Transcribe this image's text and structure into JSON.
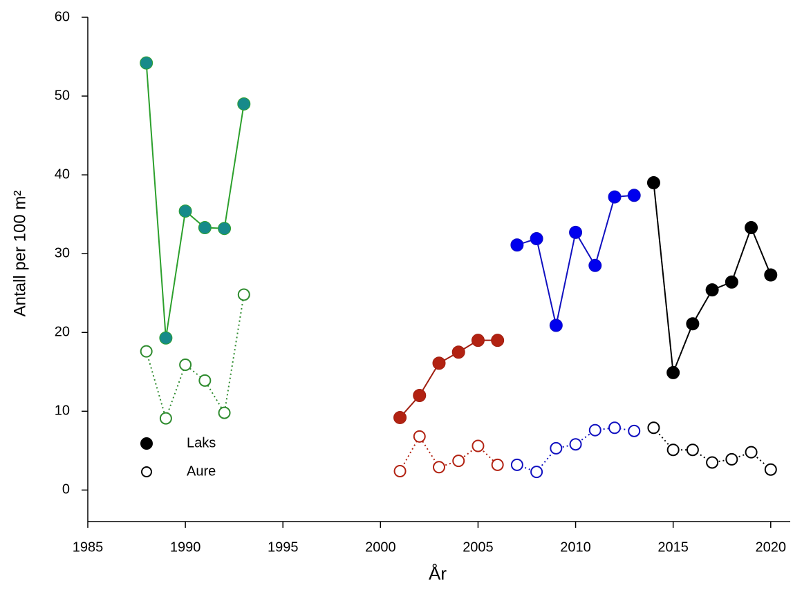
{
  "chart_data": {
    "type": "line",
    "x_label": "År",
    "y_label": "Antall per 100 m²",
    "xlim": [
      1985,
      2021
    ],
    "xticks": [
      1985,
      1990,
      1995,
      2000,
      2005,
      2010,
      2015,
      2020
    ],
    "ylim": [
      -4,
      60
    ],
    "yticks": [
      0,
      10,
      20,
      30,
      40,
      50,
      60
    ],
    "legend": [
      {
        "label": "Laks",
        "marker": "filled"
      },
      {
        "label": "Aure",
        "marker": "open"
      }
    ],
    "series": [
      {
        "marker": "filled",
        "line": "solid",
        "color": "#2ca02c",
        "marker_color": "#178a8a",
        "x": [
          1988,
          1989,
          1990,
          1991,
          1992,
          1993
        ],
        "values": [
          54.2,
          19.3,
          35.4,
          33.3,
          33.2,
          49.0
        ]
      },
      {
        "marker": "open",
        "line": "dotted",
        "color": "#2e8b2e",
        "marker_color": "#2e8b2e",
        "x": [
          1988,
          1989,
          1990,
          1991,
          1992,
          1993
        ],
        "values": [
          17.6,
          9.1,
          15.9,
          13.9,
          9.8,
          24.8
        ]
      },
      {
        "marker": "filled",
        "line": "solid",
        "color": "#a01e10",
        "marker_color": "#b22212",
        "x": [
          2001,
          2002,
          2003,
          2004,
          2005,
          2006
        ],
        "values": [
          9.2,
          12.0,
          16.1,
          17.5,
          19.0,
          19.0
        ]
      },
      {
        "marker": "open",
        "line": "dotted",
        "color": "#b22212",
        "marker_color": "#b22212",
        "x": [
          2001,
          2002,
          2003,
          2004,
          2005,
          2006
        ],
        "values": [
          2.4,
          6.8,
          2.9,
          3.7,
          5.6,
          3.2
        ]
      },
      {
        "marker": "filled",
        "line": "solid",
        "color": "#1010c0",
        "marker_color": "#0000ee",
        "x": [
          2007,
          2008,
          2009,
          2010,
          2011,
          2012,
          2013
        ],
        "values": [
          31.1,
          31.9,
          20.9,
          32.7,
          28.5,
          37.2,
          37.4
        ]
      },
      {
        "marker": "open",
        "line": "dotted",
        "color": "#1010c0",
        "marker_color": "#1010c0",
        "x": [
          2007,
          2008,
          2009,
          2010,
          2011,
          2012,
          2013
        ],
        "values": [
          3.2,
          2.3,
          5.3,
          5.8,
          7.6,
          7.9,
          7.5
        ]
      },
      {
        "marker": "filled",
        "line": "solid",
        "color": "#000000",
        "marker_color": "#000000",
        "x": [
          2014,
          2015,
          2016,
          2017,
          2018,
          2019,
          2020
        ],
        "values": [
          39.0,
          14.9,
          21.1,
          25.4,
          26.4,
          33.3,
          27.3
        ]
      },
      {
        "marker": "open",
        "line": "dotted",
        "color": "#000000",
        "marker_color": "#000000",
        "x": [
          2014,
          2015,
          2016,
          2017,
          2018,
          2019,
          2020
        ],
        "values": [
          7.9,
          5.1,
          5.1,
          3.5,
          3.9,
          4.8,
          2.6
        ]
      }
    ]
  }
}
